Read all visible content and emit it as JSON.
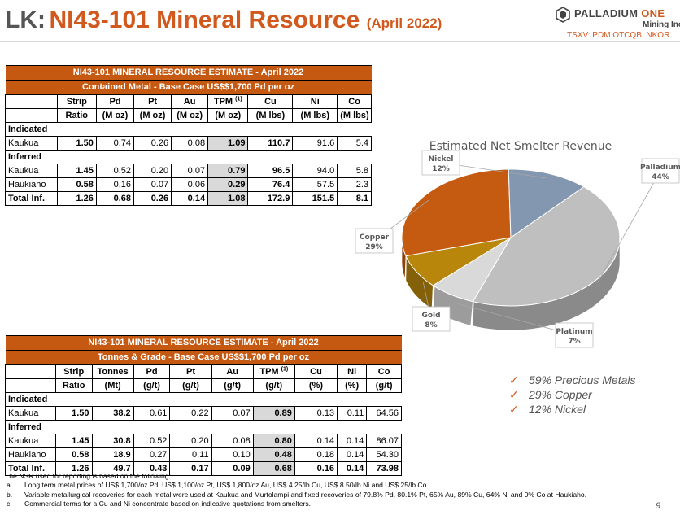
{
  "header": {
    "prefix": "LK:",
    "title": "NI43-101 Mineral Resource",
    "date": "(April 2022)",
    "logo_name": "PALLADIUM",
    "logo_one": "ONE",
    "logo_sub": "Mining Inc.",
    "ticker": "TSXV: PDM  OTCQB: NKOR"
  },
  "table1": {
    "title": "NI43-101 MINERAL RESOURCE ESTIMATE - April 2022",
    "subtitle": "Contained Metal - Base Case US$$1,700 Pd per oz",
    "headers": [
      [
        "Strip",
        "Ratio"
      ],
      [
        "Pd",
        "(M oz)"
      ],
      [
        "Pt",
        "(M oz)"
      ],
      [
        "Au",
        "(M oz)"
      ],
      [
        "TPM",
        "(M oz)"
      ],
      [
        "Cu",
        "(M lbs)"
      ],
      [
        "Ni",
        "(M lbs)"
      ],
      [
        "Co",
        "(M lbs)"
      ]
    ],
    "tpm_sup": "(1)",
    "indicated_label": "Indicated",
    "inferred_label": "Inferred",
    "indicated": [
      {
        "name": "Kaukua",
        "values": [
          "1.50",
          "0.74",
          "0.26",
          "0.08",
          "1.09",
          "110.7",
          "91.6",
          "5.4"
        ]
      }
    ],
    "inferred": [
      {
        "name": "Kaukua",
        "values": [
          "1.45",
          "0.52",
          "0.20",
          "0.07",
          "0.79",
          "96.5",
          "94.0",
          "5.8"
        ]
      },
      {
        "name": "Haukiaho",
        "values": [
          "0.58",
          "0.16",
          "0.07",
          "0.06",
          "0.29",
          "76.4",
          "57.5",
          "2.3"
        ]
      },
      {
        "name": "Total Inf.",
        "values": [
          "1.26",
          "0.68",
          "0.26",
          "0.14",
          "1.08",
          "172.9",
          "151.5",
          "8.1"
        ]
      }
    ]
  },
  "table2": {
    "title": "NI43-101 MINERAL RESOURCE ESTIMATE - April 2022",
    "subtitle": "Tonnes & Grade - Base Case US$$1,700 Pd per oz",
    "headers": [
      [
        "Strip",
        "Ratio"
      ],
      [
        "Tonnes",
        "(Mt)"
      ],
      [
        "Pd",
        "(g/t)"
      ],
      [
        "Pt",
        "(g/t)"
      ],
      [
        "Au",
        "(g/t)"
      ],
      [
        "TPM",
        "(g/t)"
      ],
      [
        "Cu",
        "(%)"
      ],
      [
        "Ni",
        "(%)"
      ],
      [
        "Co",
        "(g/t)"
      ]
    ],
    "tpm_sup": "(1)",
    "indicated_label": "Indicated",
    "inferred_label": "Inferred",
    "indicated": [
      {
        "name": "Kaukua",
        "values": [
          "1.50",
          "38.2",
          "0.61",
          "0.22",
          "0.07",
          "0.89",
          "0.13",
          "0.11",
          "64.56"
        ]
      }
    ],
    "inferred": [
      {
        "name": "Kaukua",
        "values": [
          "1.45",
          "30.8",
          "0.52",
          "0.20",
          "0.08",
          "0.80",
          "0.14",
          "0.14",
          "86.07"
        ]
      },
      {
        "name": "Haukiaho",
        "values": [
          "0.58",
          "18.9",
          "0.27",
          "0.11",
          "0.10",
          "0.48",
          "0.18",
          "0.14",
          "54.30"
        ]
      },
      {
        "name": "Total Inf.",
        "values": [
          "1.26",
          "49.7",
          "0.43",
          "0.17",
          "0.09",
          "0.68",
          "0.16",
          "0.14",
          "73.98"
        ]
      }
    ]
  },
  "chart_data": {
    "type": "pie",
    "title": "Estimated Net Smelter Revenue",
    "categories": [
      "Palladium",
      "Platinum",
      "Gold",
      "Copper",
      "Nickel"
    ],
    "values": [
      44,
      7,
      8,
      29,
      12
    ],
    "labels": [
      "44%",
      "7%",
      "8%",
      "29%",
      "12%"
    ],
    "colors": [
      "#bfbfbf",
      "#d9d9d9",
      "#b8860b",
      "#c55a11",
      "#8497b0"
    ],
    "three_d": true,
    "legend": "data labels"
  },
  "callouts": [
    "59% Precious Metals",
    "29% Copper",
    "12% Nickel"
  ],
  "check_mark": "✓",
  "notes": {
    "intro": "The NSR used for reporting is based on the following:",
    "items": [
      {
        "letter": "a.",
        "text": "Long term metal prices of US$ 1,700/oz Pd, US$ 1,100/oz Pt, US$ 1,800/oz Au, US$ 4.25/lb Cu, US$ 8.50/lb Ni and US$ 25/lb Co."
      },
      {
        "letter": "b.",
        "text": "Variable metallurgical recoveries for each metal were used at Kaukua and Murtolampi and fixed recoveries of 79.8% Pd, 80.1% Pt, 65% Au, 89% Cu, 64% Ni and 0% Co at Haukiaho."
      },
      {
        "letter": "c.",
        "text": "Commercial terms for a Cu and Ni concentrate based on indicative quotations from smelters."
      }
    ]
  },
  "page_number": "9"
}
